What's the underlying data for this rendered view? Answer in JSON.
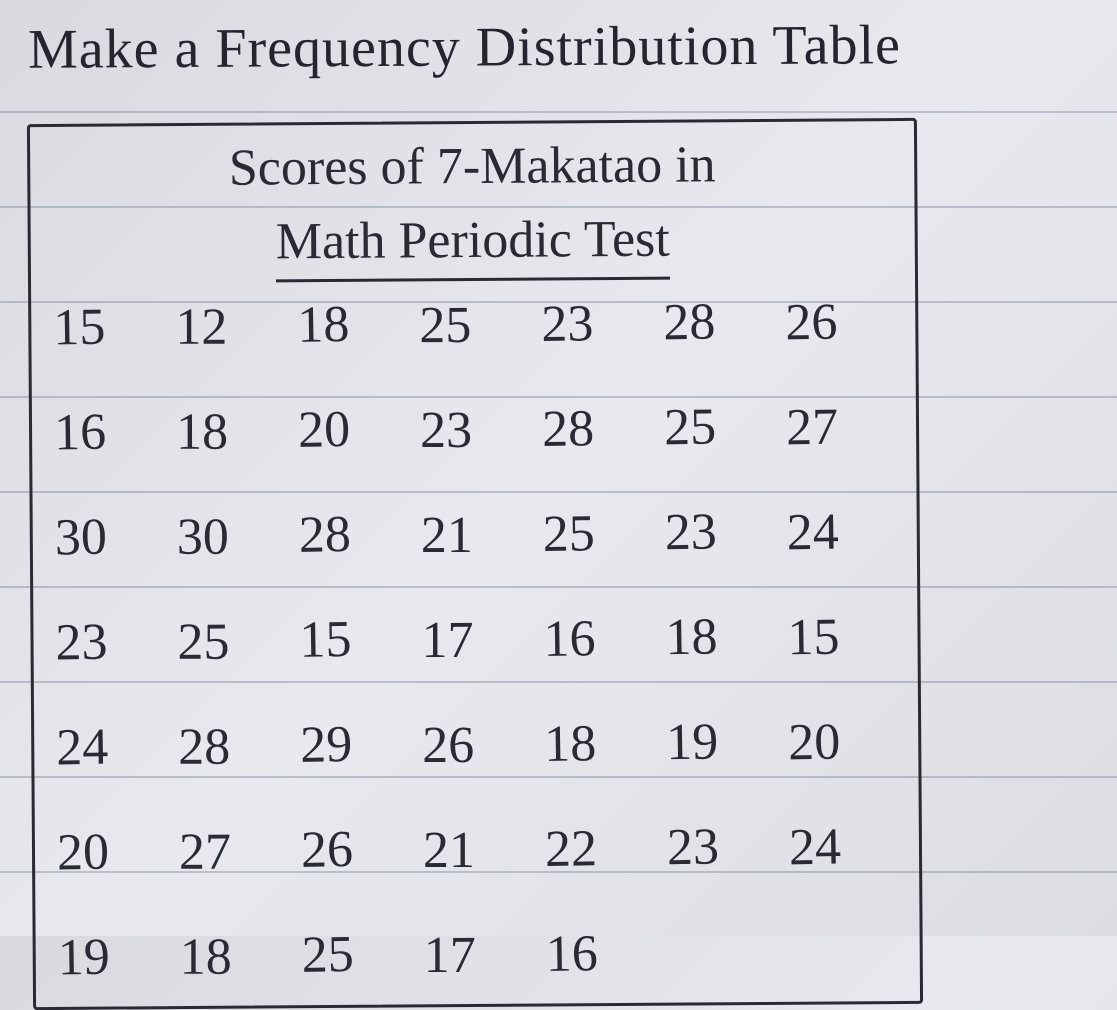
{
  "page_title": "Make a Frequency Distribution Table",
  "data_table": {
    "type": "table",
    "caption_line1": "Scores of 7-Makatao in",
    "caption_line2": "Math Periodic Test",
    "columns_count": 7,
    "rows": [
      [
        15,
        12,
        18,
        25,
        23,
        28,
        26
      ],
      [
        16,
        18,
        20,
        23,
        28,
        25,
        27
      ],
      [
        30,
        30,
        28,
        21,
        25,
        23,
        24
      ],
      [
        23,
        25,
        15,
        17,
        16,
        18,
        15
      ],
      [
        24,
        28,
        29,
        26,
        18,
        19,
        20
      ],
      [
        20,
        27,
        26,
        21,
        22,
        23,
        24
      ],
      [
        19,
        18,
        25,
        17,
        16
      ]
    ],
    "border_color": "#2a2a35",
    "text_color": "#2a2a35",
    "background_color": "#e2e3e9",
    "rule_line_color": "rgba(100,110,140,0.35)",
    "font_family": "handwritten",
    "title_fontsize": 56,
    "caption_fontsize": 52,
    "cell_fontsize": 52
  }
}
